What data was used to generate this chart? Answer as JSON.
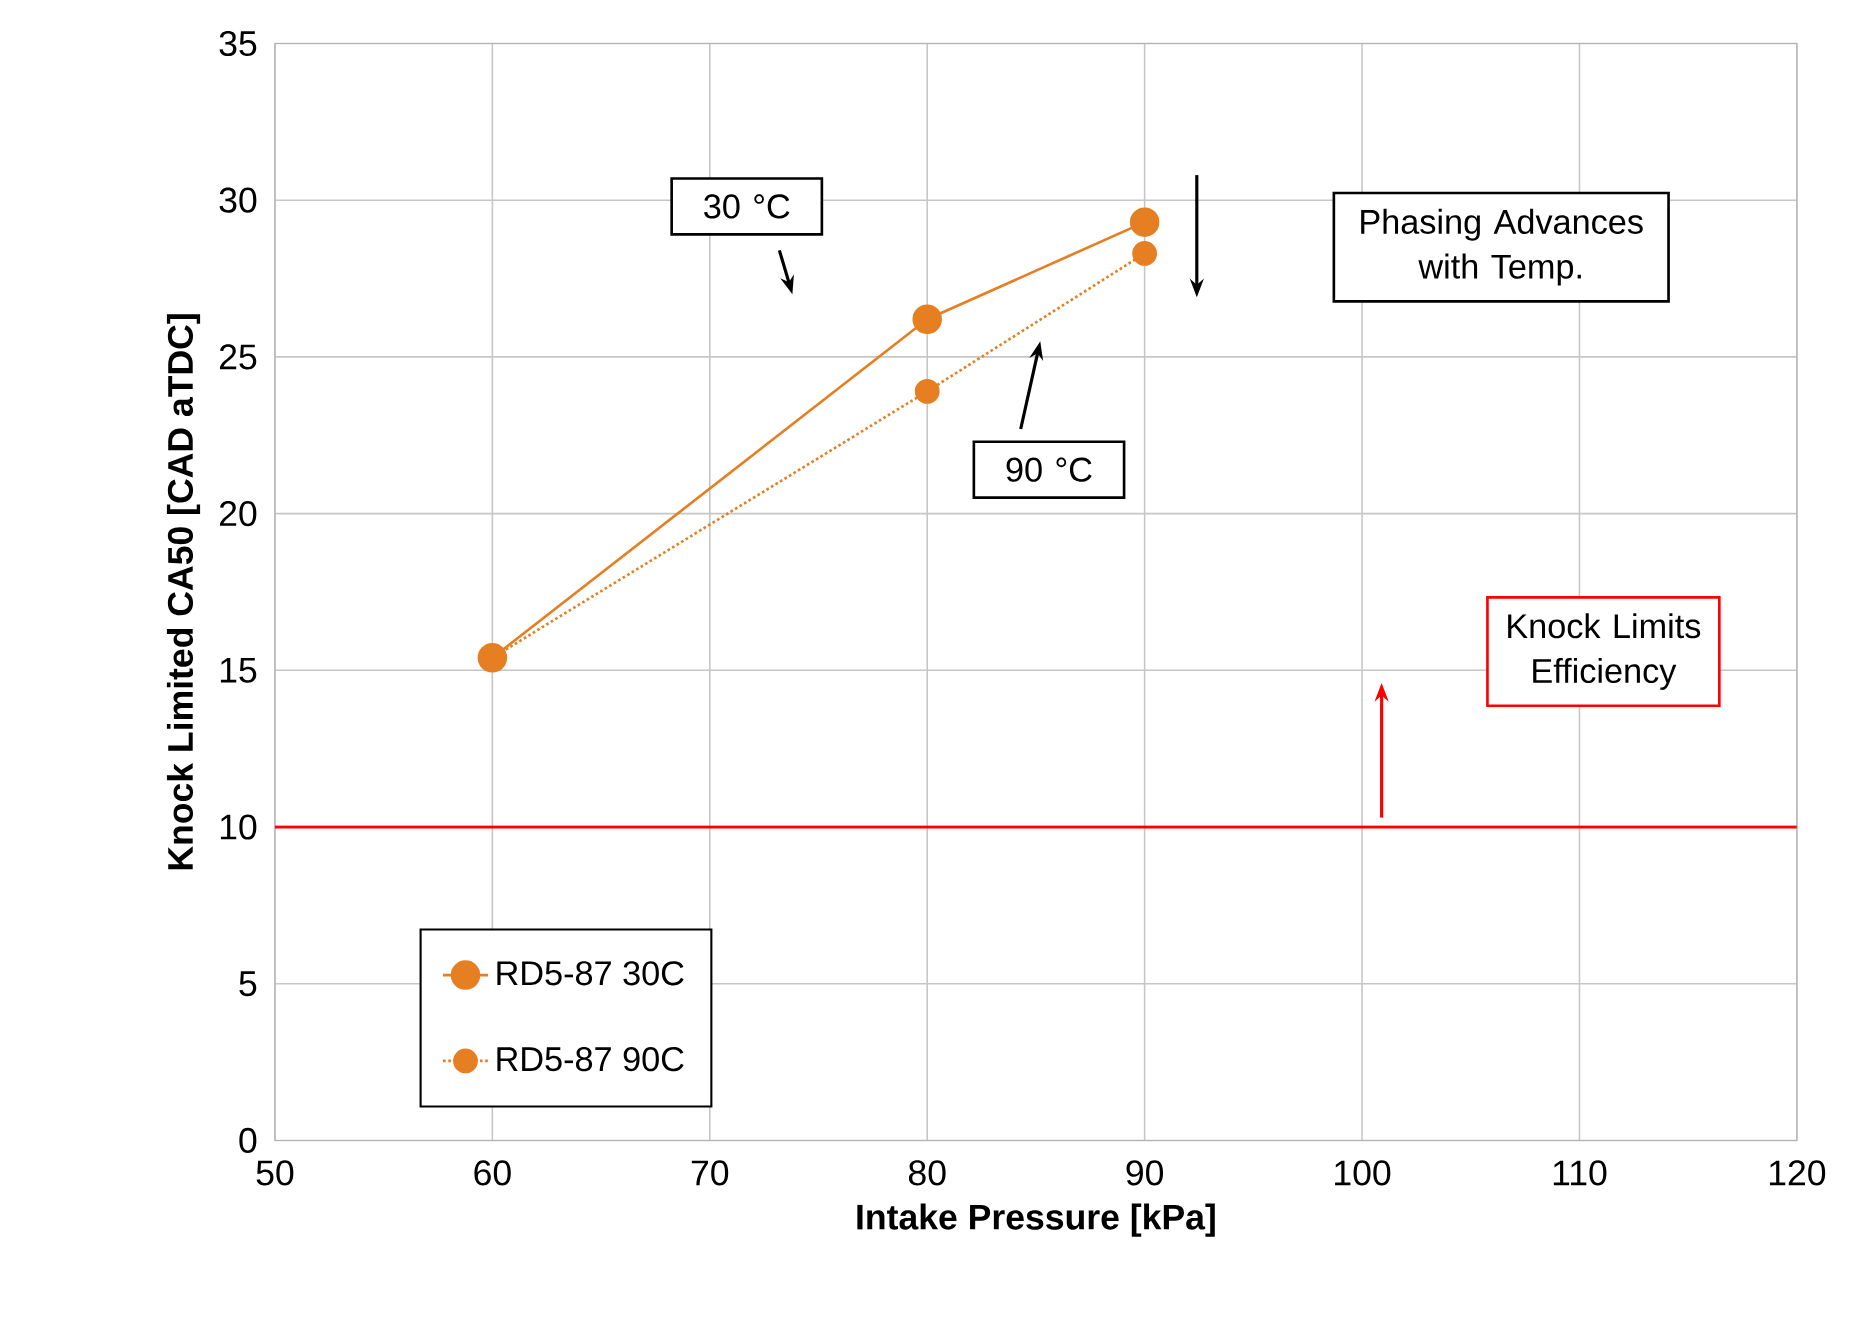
{
  "chart_data": {
    "type": "line",
    "xlabel": "Intake Pressure [kPa]",
    "ylabel": "Knock Limited CA50 [CAD aTDC]",
    "xlim": [
      50,
      120
    ],
    "ylim": [
      0,
      35
    ],
    "xticks": [
      50,
      60,
      70,
      80,
      90,
      100,
      110,
      120
    ],
    "yticks": [
      0,
      5,
      10,
      15,
      20,
      25,
      30,
      35
    ],
    "grid": true,
    "legend": "bottom left",
    "marker": "circle",
    "series": [
      {
        "name": "RD5-87 30C",
        "color": "#e67e22",
        "x": [
          60,
          80,
          90
        ],
        "values": [
          15.4,
          26.2,
          29.3
        ],
        "line_style": "solid"
      },
      {
        "name": "RD5-87 90C",
        "color": "#e67e22",
        "x": [
          60,
          80,
          90
        ],
        "values": [
          15.4,
          23.9,
          28.3
        ],
        "line_style": "dotted"
      }
    ],
    "ref_lines": [
      {
        "axis": "y",
        "value": 10,
        "color": "#ff0000"
      }
    ],
    "annotations": [
      "30 °C",
      "90 °C",
      "Phasing Advances with Temp.",
      "Knock Limits Efficiency"
    ]
  }
}
